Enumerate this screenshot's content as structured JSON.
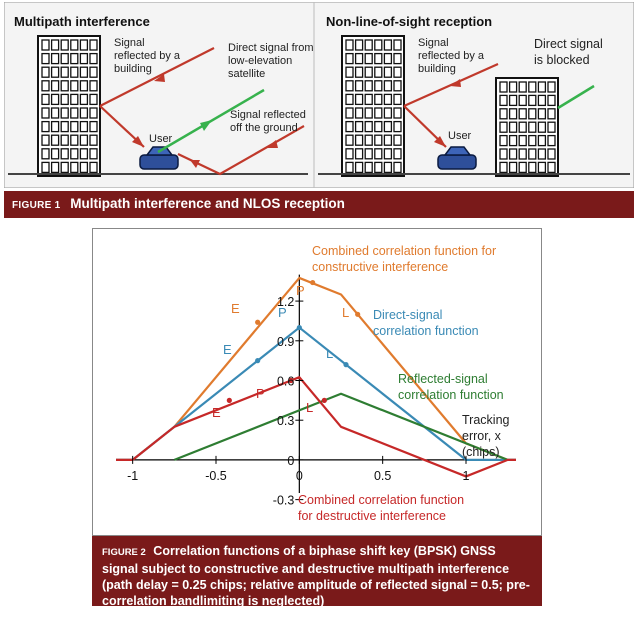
{
  "figure1": {
    "left_panel": {
      "title": "Multipath interference",
      "reflected_building": [
        "Signal",
        "reflected by a",
        "building"
      ],
      "direct_signal": [
        "Direct signal from",
        "low-elevation",
        "satellite"
      ],
      "ground_reflection": [
        "Signal reflected",
        "off the ground"
      ],
      "user": "User"
    },
    "right_panel": {
      "title": "Non-line-of-sight reception",
      "reflected_building": [
        "Signal",
        "reflected by a",
        "building"
      ],
      "blocked": [
        "Direct signal",
        "is blocked"
      ],
      "user": "User"
    },
    "caption_num": "FIGURE 1",
    "caption_text": "Multipath interference and NLOS reception"
  },
  "figure2": {
    "labels": {
      "combined_constructive": [
        "Combined correlation function for",
        "constructive interference"
      ],
      "direct": [
        "Direct-signal",
        "correlation function"
      ],
      "reflected": [
        "Reflected-signal",
        "correlation function"
      ],
      "tracking_error": [
        "Tracking",
        "error, x",
        "(chips)"
      ],
      "combined_destructive": [
        "Combined correlation function",
        "for destructive interference"
      ]
    },
    "point_labels": {
      "E1": "E",
      "P1": "P",
      "L1": "L",
      "E2": "E",
      "P2": "P",
      "L2": "L",
      "E3": "E",
      "P3": "P",
      "L3": "L"
    },
    "caption_num": "FIGURE 2",
    "caption_text": "Correlation functions of a biphase shift key (BPSK) GNSS signal subject to constructive and destructive multipath interference (path delay = 0.25 chips; relative amplitude of reflected signal = 0.5; pre-correlation bandlimiting is neglected)"
  },
  "chart_data": {
    "type": "line",
    "xlim": [
      -1,
      1.3
    ],
    "ylim": [
      -0.3,
      1.3
    ],
    "x_ticks": [
      "-1",
      "-0.5",
      "0",
      "0.5",
      "1"
    ],
    "y_ticks": [
      "1.2",
      "0.9",
      "0.6",
      "0.3",
      "0",
      "-0.3"
    ],
    "series": [
      {
        "name": "Combined correlation function for constructive interference",
        "color": "#e07b2e",
        "x": [
          -1.3,
          -1,
          -0.75,
          0,
          0.25,
          1,
          1.25,
          1.3
        ],
        "y": [
          0,
          0,
          0.25,
          1.375,
          1.25,
          0.125,
          0,
          0
        ]
      },
      {
        "name": "Direct-signal correlation function",
        "color": "#3a8ab5",
        "x": [
          -1.3,
          -1,
          0,
          1,
          1.3
        ],
        "y": [
          0,
          0,
          1,
          0,
          0
        ]
      },
      {
        "name": "Reflected-signal correlation function",
        "color": "#2e7d32",
        "x": [
          -0.75,
          0.25,
          1.25
        ],
        "y": [
          0,
          0.5,
          0
        ]
      },
      {
        "name": "Combined correlation function for destructive interference",
        "color": "#c62828",
        "x": [
          -1.3,
          -1,
          -0.75,
          0,
          0.25,
          1,
          1.25,
          1.3
        ],
        "y": [
          0,
          0,
          0.25,
          0.625,
          0.25,
          -0.125,
          0,
          0
        ]
      }
    ],
    "markers": [
      {
        "series": 0,
        "x": -0.25,
        "y": 1.04
      },
      {
        "series": 0,
        "x": 0.08,
        "y": 1.34
      },
      {
        "series": 0,
        "x": 0.35,
        "y": 1.1
      },
      {
        "series": 1,
        "x": -0.25,
        "y": 0.75
      },
      {
        "series": 1,
        "x": 0,
        "y": 1.0
      },
      {
        "series": 1,
        "x": 0.28,
        "y": 0.72
      },
      {
        "series": 3,
        "x": -0.42,
        "y": 0.45
      },
      {
        "series": 3,
        "x": -0.05,
        "y": 0.6
      },
      {
        "series": 3,
        "x": 0.15,
        "y": 0.45
      }
    ]
  },
  "colors": {
    "caption_bg": "#7a1a1a",
    "orange": "#e07b2e",
    "blue": "#3a8ab5",
    "green": "#2e7d32",
    "red": "#c62828"
  }
}
